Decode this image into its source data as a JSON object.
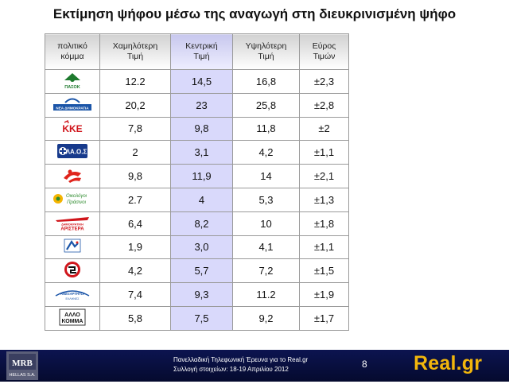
{
  "title": "Εκτίμηση ψήφου μέσω της αναγωγή στη διευκρινισμένη ψήφο",
  "table": {
    "headers": {
      "party": [
        "πολιτικό",
        "κόμμα"
      ],
      "low": [
        "Χαμηλότερη",
        "Τιμή"
      ],
      "mid": [
        "Κεντρική",
        "Τιμή"
      ],
      "high": [
        "Υψηλότερη",
        "Τιμή"
      ],
      "range": [
        "Εύρος",
        "Τιμών"
      ]
    },
    "rows": [
      {
        "party_icon": "pasok-logo",
        "logo_text": "ΠΑΣΟΚ",
        "low": "12.2",
        "mid": "14,5",
        "high": "16,8",
        "range": "±2,3"
      },
      {
        "party_icon": "nea-dimokratia-logo",
        "logo_text": "ΝΕΑ ΔΗΜΟΚΡΑΤΙΑ",
        "low": "20,2",
        "mid": "23",
        "high": "25,8",
        "range": "±2,8"
      },
      {
        "party_icon": "kke-logo",
        "logo_text": "ΚΚΕ",
        "low": "7,8",
        "mid": "9,8",
        "high": "11,8",
        "range": "±2"
      },
      {
        "party_icon": "laos-logo",
        "logo_text": "ΛΑ.Ο.Σ",
        "low": "2",
        "mid": "3,1",
        "high": "4,2",
        "range": "±1,1"
      },
      {
        "party_icon": "syriza-logo",
        "logo_text": "",
        "low": "9,8",
        "mid": "11,9",
        "high": "14",
        "range": "±2,1"
      },
      {
        "party_icon": "oikologoi-prasinoi-logo",
        "logo_text": "Οικολόγοι Πράσινοι",
        "low": "2.7",
        "mid": "4",
        "high": "5,3",
        "range": "±1,3"
      },
      {
        "party_icon": "dimokratiki-aristera-logo",
        "logo_text": "ΔΗΜΟΚΡΑΤΙΚΗ ΑΡΙΣΤΕΡΑ",
        "low": "6,4",
        "mid": "8,2",
        "high": "10",
        "range": "±1,8"
      },
      {
        "party_icon": "dimar-blue-logo",
        "logo_text": "",
        "low": "1,9",
        "mid": "3,0",
        "high": "4,1",
        "range": "±1,1"
      },
      {
        "party_icon": "chrysi-avgi-logo",
        "logo_text": "",
        "low": "4,2",
        "mid": "5,7",
        "high": "7,2",
        "range": "±1,5"
      },
      {
        "party_icon": "anexartitoi-ellines-logo",
        "logo_text": "ΑΝΕΞΑΡΤΗΤΟΙ ΕΛΛΗΝΕΣ",
        "low": "7,4",
        "mid": "9,3",
        "high": "11.2",
        "range": "±1,9"
      },
      {
        "party_icon": "allo-komma-logo",
        "logo_text": "ΑΛΛΟ ΚΟΜΜΑ",
        "low": "5,8",
        "mid": "7,5",
        "high": "9,2",
        "range": "±1,7"
      }
    ]
  },
  "footer": {
    "logo_text": "MRB",
    "logo_subtext": "HELLAS S.A.",
    "line1": "Πανελλαδική Τηλεφωνική Έρευνα για το Real.gr",
    "line2": "Συλλογή στοιχείων: 18-19 Απριλίου 2012",
    "page_number": "8",
    "brand": "Real.gr"
  },
  "colors": {
    "mid_column": "#d9d9fb",
    "footer_bg": "#0a1246",
    "brand": "#f2b60c",
    "pasok_green": "#1e7a2e",
    "nd_blue": "#1b55a8",
    "kke_red": "#d0151b",
    "laos_blue": "#173a8c"
  }
}
